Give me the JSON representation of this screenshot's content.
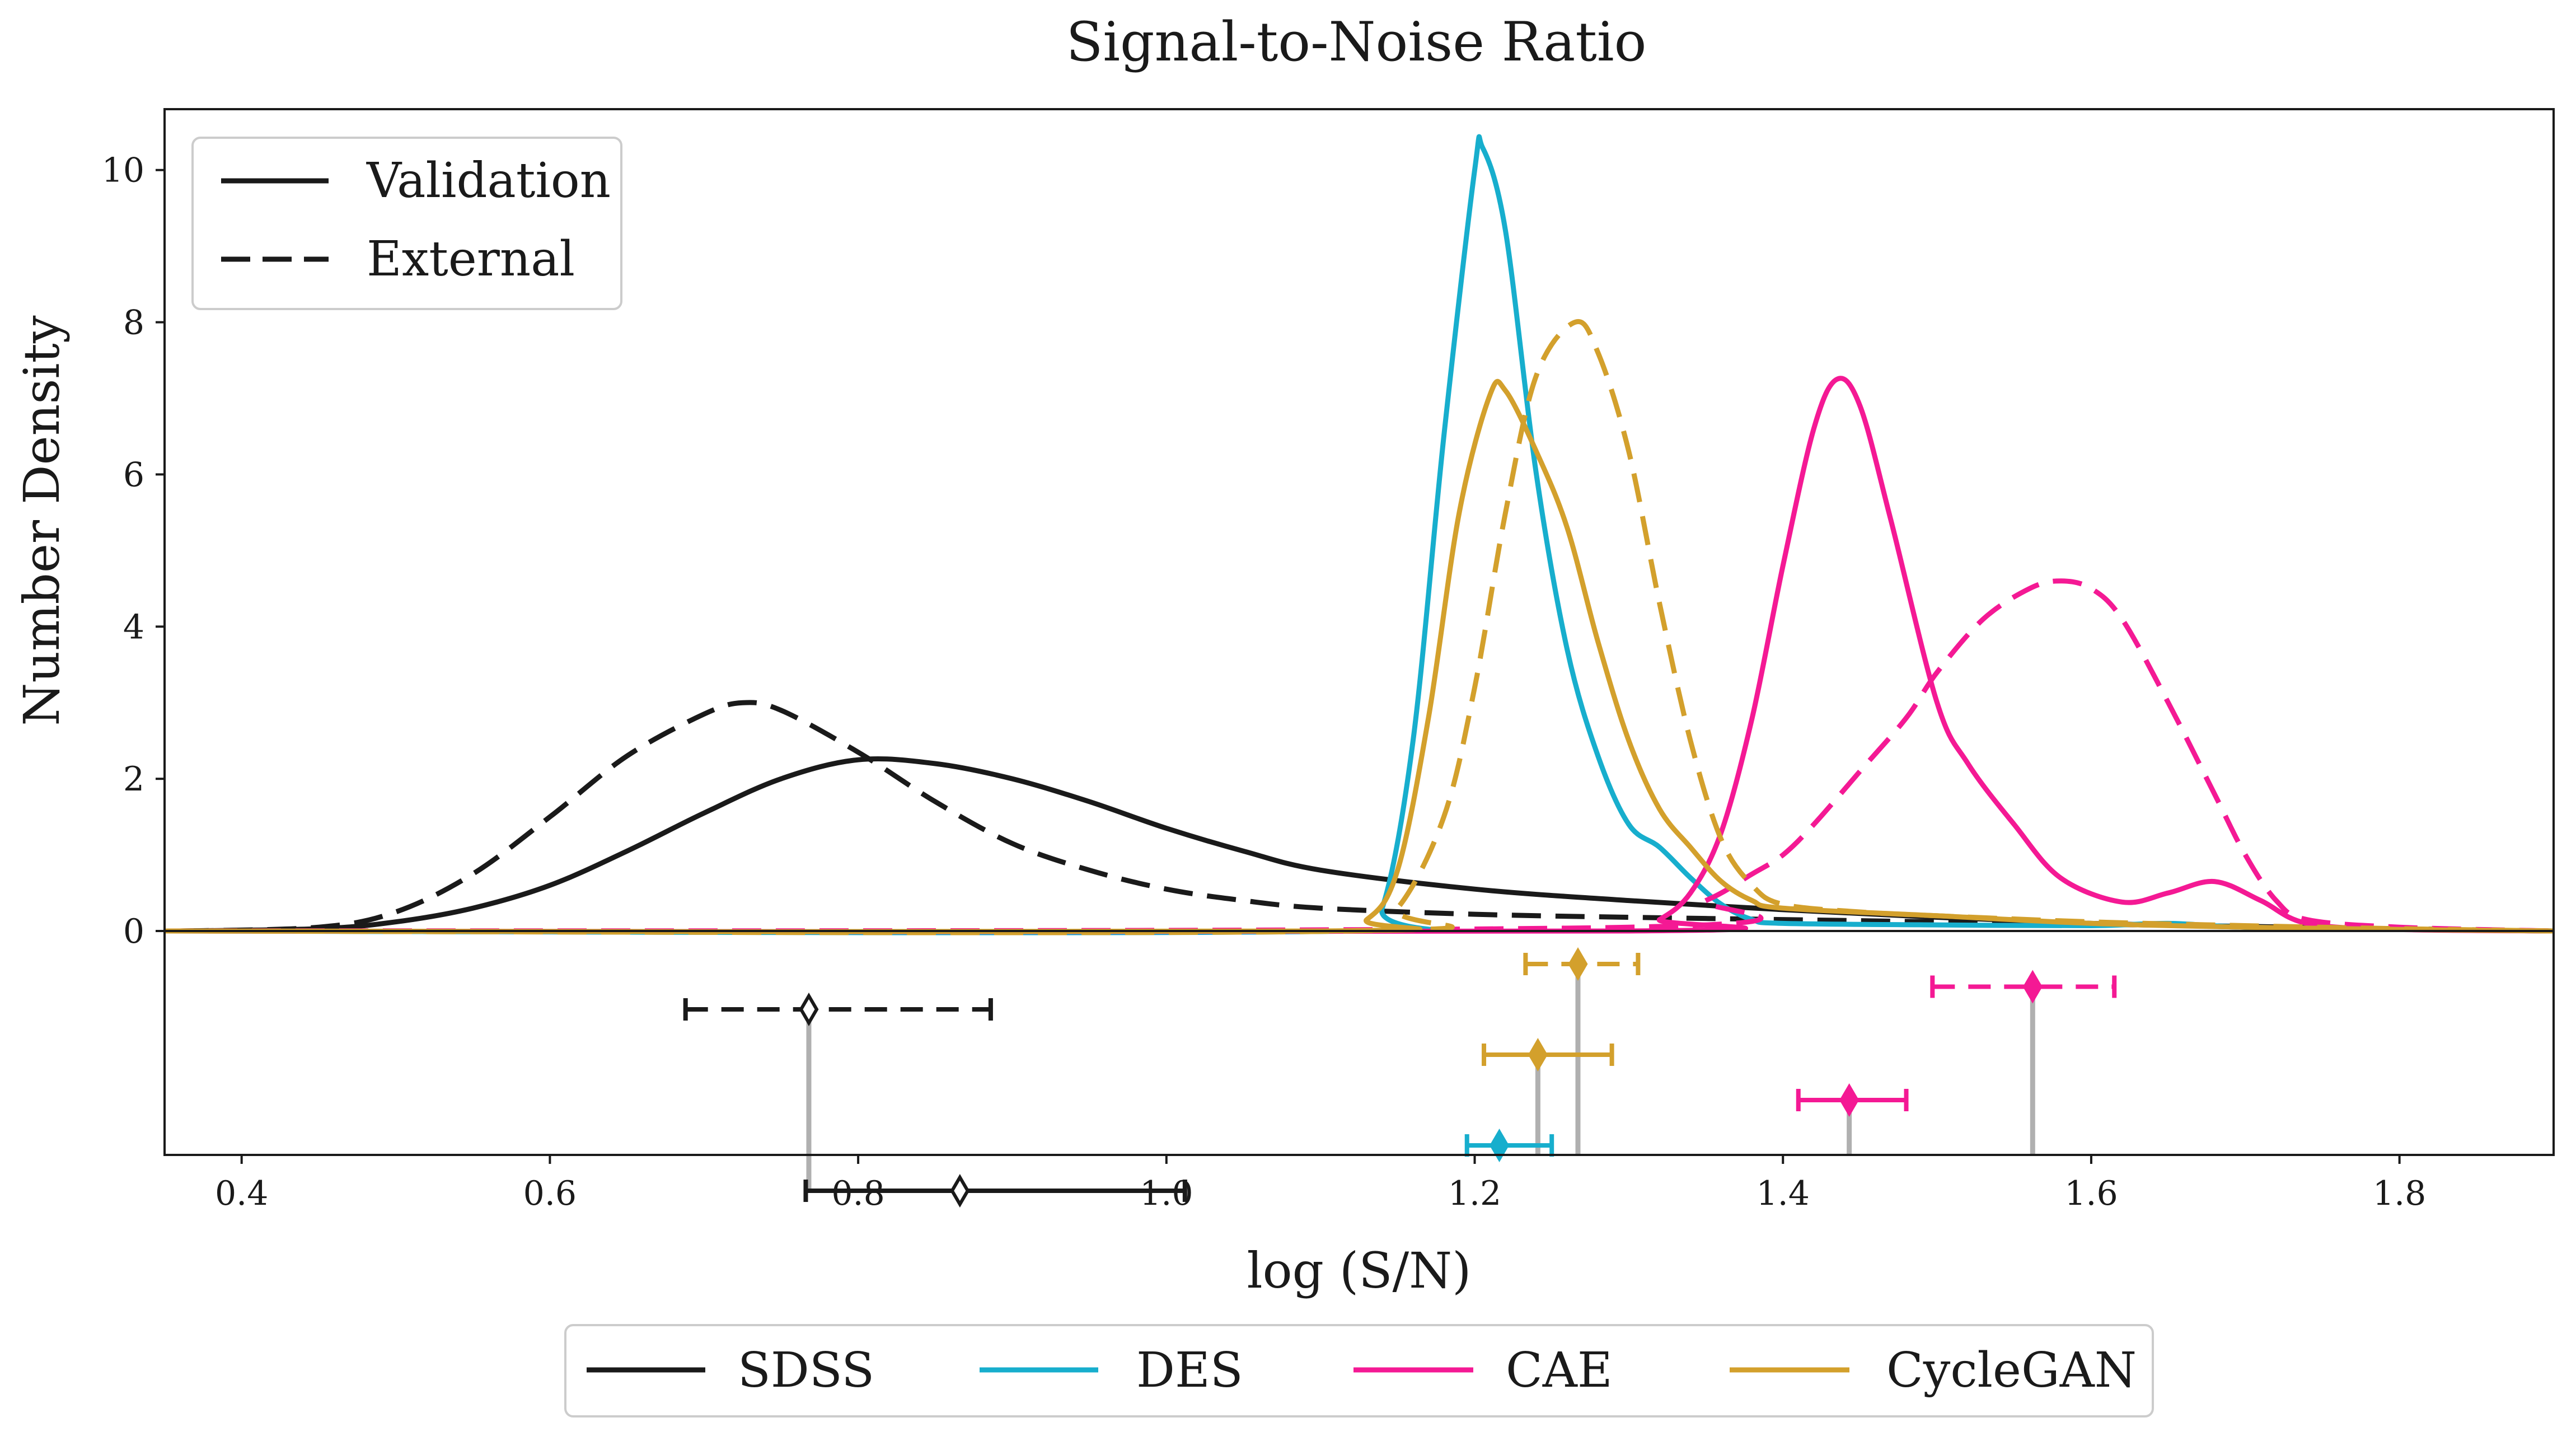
{
  "colors": {
    "SDSS": "#1a1a1a",
    "DES": "#17aecd",
    "CAE": "#f41994",
    "CycleGAN": "#d3a02c",
    "stem": "#b0b0b0"
  },
  "chart_data": {
    "type": "line",
    "title": "Signal-to-Noise Ratio",
    "xlabel": "log (S/N)",
    "ylabel": "Number Density",
    "xlim": [
      0.35,
      1.9
    ],
    "ylim": [
      0,
      10.8
    ],
    "xticks": [
      0.4,
      0.6,
      0.8,
      1.0,
      1.2,
      1.4,
      1.6,
      1.8
    ],
    "yticks": [
      0,
      2,
      4,
      6,
      8,
      10
    ],
    "grid": false,
    "legend_styles": {
      "placement": "top-left",
      "entries": [
        {
          "label": "Validation",
          "style": "solid"
        },
        {
          "label": "External",
          "style": "dashed"
        }
      ]
    },
    "legend_datasets": {
      "placement": "bottom-outside",
      "entries": [
        "SDSS",
        "DES",
        "CAE",
        "CycleGAN"
      ]
    },
    "series": [
      {
        "dataset": "SDSS",
        "style": "solid",
        "x": [
          0.36,
          0.45,
          0.5,
          0.55,
          0.6,
          0.65,
          0.7,
          0.75,
          0.8,
          0.85,
          0.9,
          0.95,
          1.0,
          1.05,
          1.1,
          1.2,
          1.3,
          1.4,
          1.5,
          1.6,
          1.7,
          1.8,
          1.9
        ],
        "y": [
          0,
          0.03,
          0.12,
          0.3,
          0.6,
          1.05,
          1.55,
          2.0,
          2.25,
          2.2,
          2.0,
          1.7,
          1.35,
          1.05,
          0.8,
          0.55,
          0.4,
          0.28,
          0.18,
          0.1,
          0.05,
          0.02,
          0
        ]
      },
      {
        "dataset": "SDSS",
        "style": "dashed",
        "x": [
          0.36,
          0.45,
          0.5,
          0.55,
          0.6,
          0.65,
          0.7,
          0.725,
          0.75,
          0.8,
          0.85,
          0.9,
          0.95,
          1.0,
          1.05,
          1.1,
          1.2,
          1.3,
          1.4,
          1.5,
          1.6,
          1.7,
          1.8,
          1.9
        ],
        "y": [
          0,
          0.05,
          0.25,
          0.75,
          1.5,
          2.3,
          2.85,
          3.0,
          2.9,
          2.35,
          1.7,
          1.15,
          0.8,
          0.55,
          0.4,
          0.3,
          0.22,
          0.18,
          0.15,
          0.12,
          0.09,
          0.06,
          0.03,
          0
        ]
      },
      {
        "dataset": "DES",
        "style": "solid",
        "x": [
          0.35,
          1.12,
          1.14,
          1.16,
          1.18,
          1.2,
          1.205,
          1.22,
          1.24,
          1.26,
          1.28,
          1.3,
          1.32,
          1.34,
          1.36,
          1.38,
          1.4,
          1.5,
          1.6,
          1.65,
          1.7,
          1.8,
          1.9
        ],
        "y": [
          0,
          0,
          0.3,
          2.5,
          6.5,
          10.0,
          10.3,
          9.2,
          6.0,
          3.7,
          2.3,
          1.4,
          1.1,
          0.7,
          0.35,
          0.15,
          0.1,
          0.08,
          0.07,
          0.1,
          0.05,
          0.02,
          0
        ]
      },
      {
        "dataset": "CAE",
        "style": "solid",
        "x": [
          0.35,
          1.3,
          1.32,
          1.34,
          1.36,
          1.38,
          1.4,
          1.42,
          1.435,
          1.45,
          1.47,
          1.5,
          1.52,
          1.55,
          1.58,
          1.62,
          1.65,
          1.68,
          1.71,
          1.74,
          1.8,
          1.9
        ],
        "y": [
          0,
          0,
          0.15,
          0.5,
          1.3,
          2.8,
          4.8,
          6.6,
          7.25,
          6.9,
          5.4,
          3.0,
          2.2,
          1.4,
          0.7,
          0.38,
          0.5,
          0.65,
          0.4,
          0.1,
          0.02,
          0
        ]
      },
      {
        "dataset": "CAE",
        "style": "dashed",
        "x": [
          0.35,
          1.3,
          1.35,
          1.38,
          1.4,
          1.42,
          1.45,
          1.48,
          1.5,
          1.53,
          1.56,
          1.58,
          1.6,
          1.62,
          1.65,
          1.68,
          1.7,
          1.72,
          1.74,
          1.8,
          1.9
        ],
        "y": [
          0,
          0.05,
          0.4,
          0.75,
          1.0,
          1.4,
          2.1,
          2.8,
          3.4,
          4.1,
          4.5,
          4.6,
          4.5,
          4.1,
          3.0,
          1.8,
          1.0,
          0.4,
          0.15,
          0.05,
          0
        ]
      },
      {
        "dataset": "CycleGAN",
        "style": "solid",
        "x": [
          0.35,
          1.1,
          1.13,
          1.15,
          1.17,
          1.19,
          1.21,
          1.22,
          1.24,
          1.26,
          1.28,
          1.3,
          1.32,
          1.34,
          1.36,
          1.38,
          1.4,
          1.5,
          1.6,
          1.7,
          1.8,
          1.9
        ],
        "y": [
          0,
          0,
          0.15,
          0.8,
          2.8,
          5.5,
          7.05,
          7.1,
          6.3,
          5.3,
          3.8,
          2.5,
          1.6,
          1.1,
          0.65,
          0.4,
          0.3,
          0.2,
          0.1,
          0.05,
          0.02,
          0
        ]
      },
      {
        "dataset": "CycleGAN",
        "style": "dashed",
        "x": [
          0.35,
          1.12,
          1.15,
          1.18,
          1.2,
          1.22,
          1.24,
          1.265,
          1.28,
          1.3,
          1.32,
          1.34,
          1.36,
          1.38,
          1.4,
          1.45,
          1.5,
          1.6,
          1.7,
          1.8,
          1.9
        ],
        "y": [
          0,
          0,
          0.3,
          1.5,
          3.2,
          5.5,
          7.3,
          8.0,
          7.6,
          6.3,
          4.3,
          2.5,
          1.2,
          0.6,
          0.35,
          0.25,
          0.2,
          0.12,
          0.07,
          0.03,
          0
        ]
      }
    ],
    "summary_markers": [
      {
        "dataset": "SDSS",
        "style": "dashed",
        "median": 0.768,
        "low": 0.688,
        "high": 0.886,
        "center": 0.768,
        "hollow": true,
        "level": 1
      },
      {
        "dataset": "SDSS",
        "style": "solid",
        "median": 0.768,
        "low": 0.766,
        "high": 1.012,
        "center": 0.866,
        "hollow": true,
        "level": 5
      },
      {
        "dataset": "CycleGAN",
        "style": "dashed",
        "median": 1.267,
        "low": 1.233,
        "high": 1.306,
        "center": 1.267,
        "hollow": false,
        "level": 0
      },
      {
        "dataset": "CycleGAN",
        "style": "solid",
        "median": 1.241,
        "low": 1.206,
        "high": 1.289,
        "center": 1.241,
        "hollow": false,
        "level": 2
      },
      {
        "dataset": "DES",
        "style": "solid",
        "median": 1.216,
        "low": 1.195,
        "high": 1.25,
        "center": 1.216,
        "hollow": false,
        "level": 4
      },
      {
        "dataset": "CAE",
        "style": "solid",
        "median": 1.443,
        "low": 1.41,
        "high": 1.48,
        "center": 1.443,
        "hollow": false,
        "level": 3
      },
      {
        "dataset": "CAE",
        "style": "dashed",
        "median": 1.562,
        "low": 1.497,
        "high": 1.615,
        "center": 1.562,
        "hollow": false,
        "level": 0.5
      }
    ]
  }
}
